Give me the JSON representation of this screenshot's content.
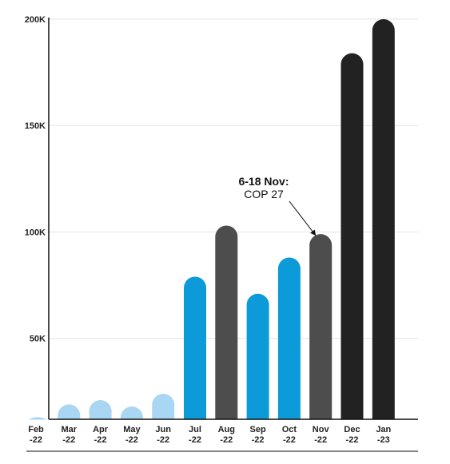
{
  "chart_data": {
    "type": "bar",
    "categories": [
      [
        "Feb",
        "-22"
      ],
      [
        "Mar",
        "-22"
      ],
      [
        "Apr",
        "-22"
      ],
      [
        "May",
        "-22"
      ],
      [
        "Jun",
        "-22"
      ],
      [
        "Jul",
        "-22"
      ],
      [
        "Aug",
        "-22"
      ],
      [
        "Sep",
        "-22"
      ],
      [
        "Oct",
        "-22"
      ],
      [
        "Nov",
        "-22"
      ],
      [
        "Dec",
        "-22"
      ],
      [
        "Jan",
        "-23"
      ]
    ],
    "values": [
      13000,
      19000,
      21000,
      18000,
      24000,
      79000,
      103000,
      71000,
      88000,
      99000,
      184000,
      200000
    ],
    "bar_colors": [
      "#a9d6f2",
      "#a9d6f2",
      "#a9d6f2",
      "#a9d6f2",
      "#a9d6f2",
      "#0d9ad8",
      "#4d4d4d",
      "#0d9ad8",
      "#0d9ad8",
      "#4d4d4d",
      "#222222",
      "#222222"
    ],
    "ylim": [
      12000,
      200000
    ],
    "yticks": [
      {
        "value": 50000,
        "label": "50K"
      },
      {
        "value": 100000,
        "label": "100K"
      },
      {
        "value": 150000,
        "label": "150K"
      },
      {
        "value": 200000,
        "label": "200K"
      }
    ],
    "grid": true,
    "annotation": {
      "title": "6-18 Nov:",
      "text": "COP 27",
      "target_category_index": 9
    },
    "xlabel": "",
    "ylabel": "",
    "title": ""
  },
  "colors": {
    "grid": "#e3e3e3",
    "axis": "#111111",
    "text": "#222222"
  }
}
